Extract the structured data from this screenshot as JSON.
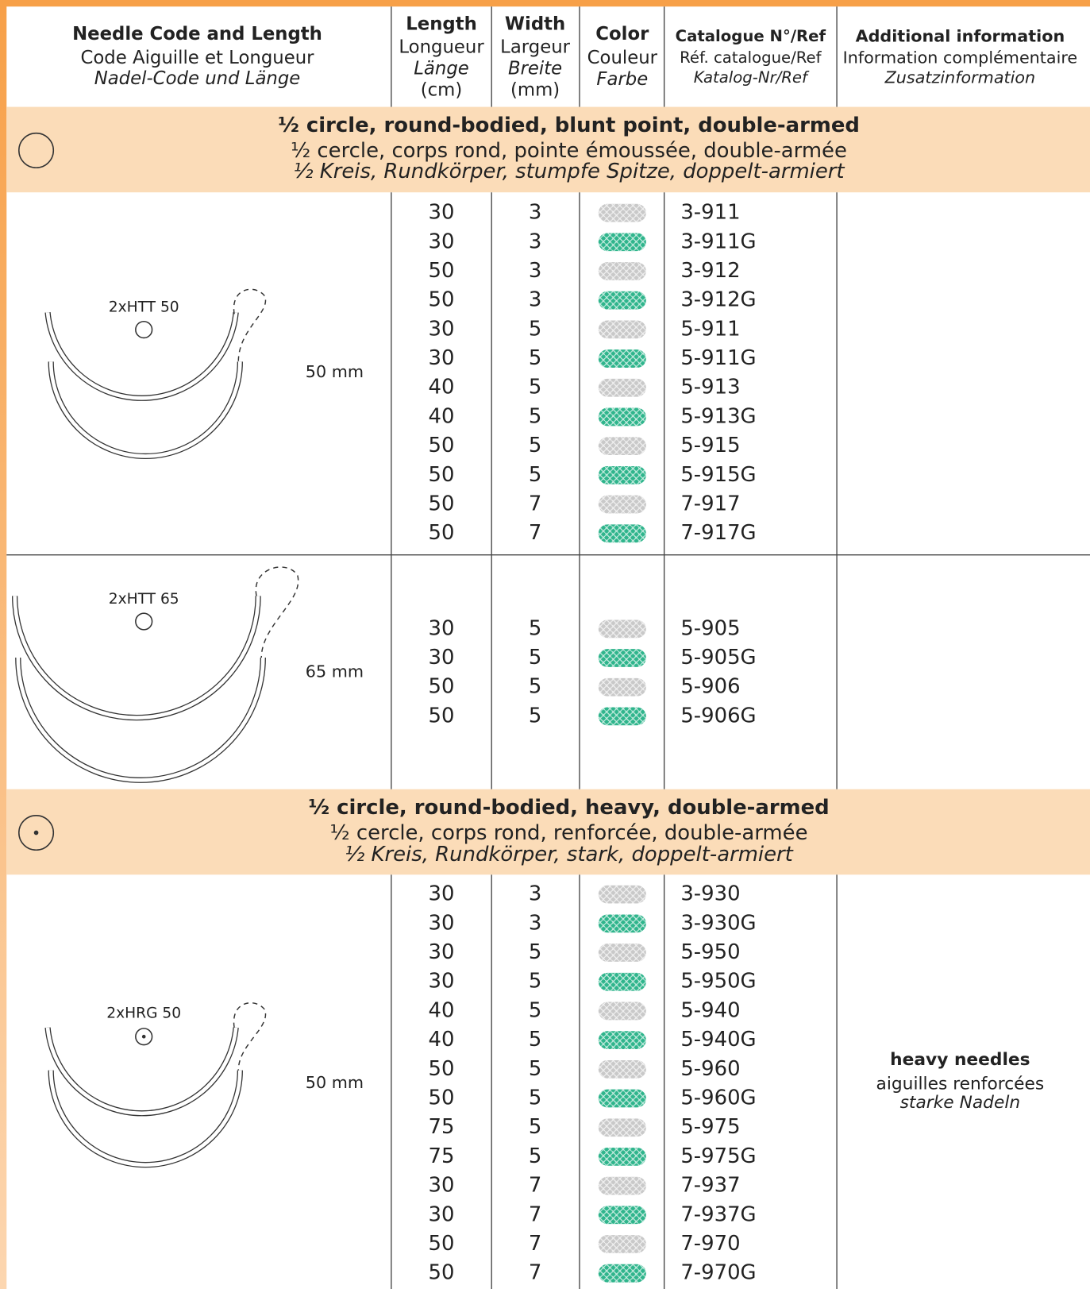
{
  "header": {
    "columns": [
      {
        "en": "Needle Code and Length",
        "fr": "Code Aiguille et Longueur",
        "de": "Nadel-Code und Länge"
      },
      {
        "en": "Length",
        "fr": "Longueur",
        "de": "Länge",
        "unit": "(cm)"
      },
      {
        "en": "Width",
        "fr": "Largeur",
        "de": "Breite",
        "unit": "(mm)"
      },
      {
        "en": "Color",
        "fr": "Couleur",
        "de": "Farbe"
      },
      {
        "en": "Catalogue N°/Ref",
        "fr": "Réf. catalogue/Ref",
        "de": "Katalog-Nr/Ref"
      },
      {
        "en": "Additional information",
        "fr": "Information complémentaire",
        "de": "Zusatzinformation"
      }
    ]
  },
  "colors": {
    "plain": "#c9c9c9",
    "green": "#2fb58c"
  },
  "sections": [
    {
      "en": "½ circle, round-bodied, blunt point, double-armed",
      "fr": "½ cercle, corps rond, pointe émoussée, double-armée",
      "de": "½ Kreis, Rundkörper, stumpfe Spitze, doppelt-armiert",
      "groups": [
        {
          "needle": "2xHTT 50",
          "size": "50 mm",
          "rows": [
            {
              "length": 30,
              "width": 3,
              "color": "plain",
              "ref": "3-911"
            },
            {
              "length": 30,
              "width": 3,
              "color": "green",
              "ref": "3-911G"
            },
            {
              "length": 50,
              "width": 3,
              "color": "plain",
              "ref": "3-912"
            },
            {
              "length": 50,
              "width": 3,
              "color": "green",
              "ref": "3-912G"
            },
            {
              "length": 30,
              "width": 5,
              "color": "plain",
              "ref": "5-911"
            },
            {
              "length": 30,
              "width": 5,
              "color": "green",
              "ref": "5-911G"
            },
            {
              "length": 40,
              "width": 5,
              "color": "plain",
              "ref": "5-913"
            },
            {
              "length": 40,
              "width": 5,
              "color": "green",
              "ref": "5-913G"
            },
            {
              "length": 50,
              "width": 5,
              "color": "plain",
              "ref": "5-915"
            },
            {
              "length": 50,
              "width": 5,
              "color": "green",
              "ref": "5-915G"
            },
            {
              "length": 50,
              "width": 7,
              "color": "plain",
              "ref": "7-917"
            },
            {
              "length": 50,
              "width": 7,
              "color": "green",
              "ref": "7-917G"
            }
          ]
        },
        {
          "needle": "2xHTT 65",
          "size": "65 mm",
          "rows": [
            {
              "length": 30,
              "width": 5,
              "color": "plain",
              "ref": "5-905"
            },
            {
              "length": 30,
              "width": 5,
              "color": "green",
              "ref": "5-905G"
            },
            {
              "length": 50,
              "width": 5,
              "color": "plain",
              "ref": "5-906"
            },
            {
              "length": 50,
              "width": 5,
              "color": "green",
              "ref": "5-906G"
            }
          ]
        }
      ]
    },
    {
      "en": "½ circle, round-bodied, heavy, double-armed",
      "fr": "½ cercle, corps rond, renforcée, double-armée",
      "de": "½ Kreis, Rundkörper, stark, doppelt-armiert",
      "groups": [
        {
          "needle": "2xHRG 50",
          "size": "50 mm",
          "info": {
            "en": "heavy needles",
            "fr": "aiguilles renforcées",
            "de": "starke Nadeln"
          },
          "rows": [
            {
              "length": 30,
              "width": 3,
              "color": "plain",
              "ref": "3-930"
            },
            {
              "length": 30,
              "width": 3,
              "color": "green",
              "ref": "3-930G"
            },
            {
              "length": 30,
              "width": 5,
              "color": "plain",
              "ref": "5-950"
            },
            {
              "length": 30,
              "width": 5,
              "color": "green",
              "ref": "5-950G"
            },
            {
              "length": 40,
              "width": 5,
              "color": "plain",
              "ref": "5-940"
            },
            {
              "length": 40,
              "width": 5,
              "color": "green",
              "ref": "5-940G"
            },
            {
              "length": 50,
              "width": 5,
              "color": "plain",
              "ref": "5-960"
            },
            {
              "length": 50,
              "width": 5,
              "color": "green",
              "ref": "5-960G"
            },
            {
              "length": 75,
              "width": 5,
              "color": "plain",
              "ref": "5-975"
            },
            {
              "length": 75,
              "width": 5,
              "color": "green",
              "ref": "5-975G"
            },
            {
              "length": 30,
              "width": 7,
              "color": "plain",
              "ref": "7-937"
            },
            {
              "length": 30,
              "width": 7,
              "color": "green",
              "ref": "7-937G"
            },
            {
              "length": 50,
              "width": 7,
              "color": "plain",
              "ref": "7-970"
            },
            {
              "length": 50,
              "width": 7,
              "color": "green",
              "ref": "7-970G"
            }
          ]
        }
      ]
    }
  ]
}
